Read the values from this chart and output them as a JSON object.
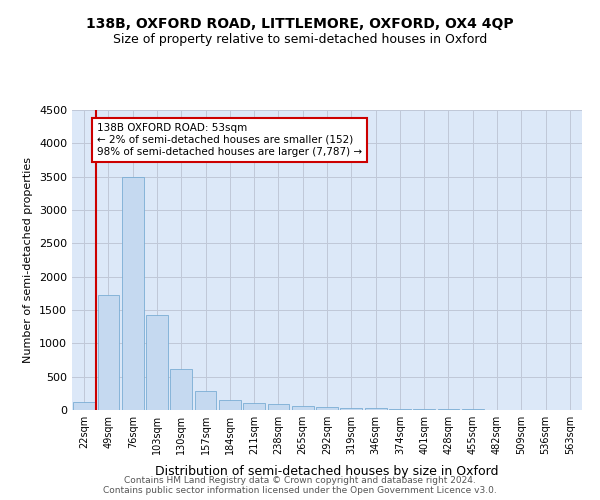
{
  "title": "138B, OXFORD ROAD, LITTLEMORE, OXFORD, OX4 4QP",
  "subtitle": "Size of property relative to semi-detached houses in Oxford",
  "xlabel": "Distribution of semi-detached houses by size in Oxford",
  "ylabel": "Number of semi-detached properties",
  "bar_color": "#c5d9f0",
  "bar_edge_color": "#7aadd4",
  "categories": [
    "22sqm",
    "49sqm",
    "76sqm",
    "103sqm",
    "130sqm",
    "157sqm",
    "184sqm",
    "211sqm",
    "238sqm",
    "265sqm",
    "292sqm",
    "319sqm",
    "346sqm",
    "374sqm",
    "401sqm",
    "428sqm",
    "455sqm",
    "482sqm",
    "509sqm",
    "536sqm",
    "563sqm"
  ],
  "values": [
    120,
    1720,
    3500,
    1430,
    620,
    290,
    155,
    110,
    90,
    60,
    45,
    35,
    25,
    20,
    15,
    10,
    8,
    5,
    4,
    3,
    2
  ],
  "ylim": [
    0,
    4500
  ],
  "yticks": [
    0,
    500,
    1000,
    1500,
    2000,
    2500,
    3000,
    3500,
    4000,
    4500
  ],
  "vline_x": 0.5,
  "vline_color": "#cc0000",
  "annotation_text": "138B OXFORD ROAD: 53sqm\n← 2% of semi-detached houses are smaller (152)\n98% of semi-detached houses are larger (7,787) →",
  "annotation_box_color": "#ffffff",
  "annotation_box_edge": "#cc0000",
  "footer1": "Contains HM Land Registry data © Crown copyright and database right 2024.",
  "footer2": "Contains public sector information licensed under the Open Government Licence v3.0.",
  "grid_color": "#c0c8d8",
  "bg_color": "#dce8f8"
}
